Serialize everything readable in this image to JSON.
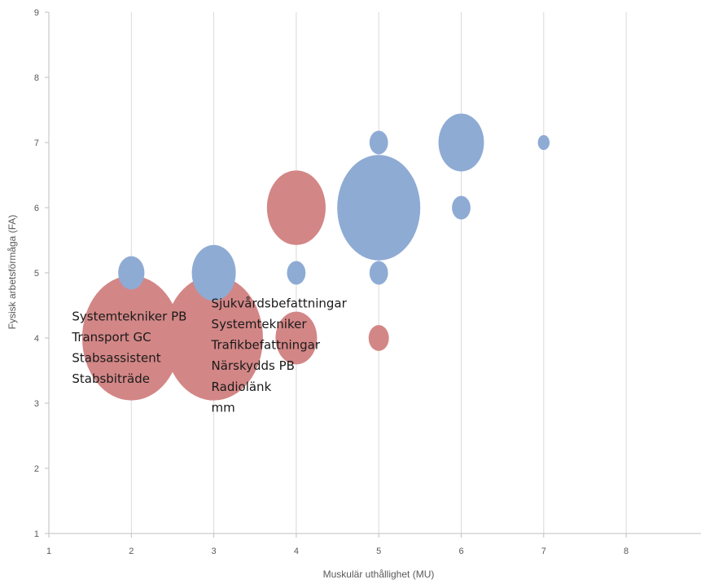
{
  "chart_data": {
    "type": "bubble",
    "xlabel": "Muskulär uthållighet (MU)",
    "ylabel": "Fysisk arbetsförmåga (FA)",
    "xlim": [
      1,
      9
    ],
    "ylim": [
      1,
      9
    ],
    "xticks": [
      1,
      2,
      3,
      4,
      5,
      6,
      7,
      8
    ],
    "yticks": [
      1,
      2,
      3,
      4,
      5,
      6,
      7,
      8,
      9
    ],
    "grid": "vertical",
    "colors": {
      "blue": "#8eabd4",
      "red": "#d38686"
    },
    "series": [
      {
        "color": "#8eabd4",
        "points": [
          {
            "x": 2,
            "y": 5,
            "size": 1.0
          },
          {
            "x": 3,
            "y": 5,
            "size": 2.8
          },
          {
            "x": 4,
            "y": 5,
            "size": 0.5
          },
          {
            "x": 5,
            "y": 5,
            "size": 0.5
          },
          {
            "x": 5,
            "y": 6,
            "size": 10.0
          },
          {
            "x": 5,
            "y": 7,
            "size": 0.5
          },
          {
            "x": 6,
            "y": 6,
            "size": 0.5
          },
          {
            "x": 6,
            "y": 7,
            "size": 3.0
          },
          {
            "x": 7,
            "y": 7,
            "size": 0.2
          }
        ]
      },
      {
        "color": "#d38686",
        "points": [
          {
            "x": 2,
            "y": 4,
            "size": 14.0
          },
          {
            "x": 3,
            "y": 4,
            "size": 14.0
          },
          {
            "x": 4,
            "y": 6,
            "size": 5.0
          },
          {
            "x": 4,
            "y": 4,
            "size": 2.5
          },
          {
            "x": 5,
            "y": 4,
            "size": 0.6
          }
        ]
      }
    ],
    "annotations": [
      {
        "x": 1.28,
        "y": 4.27,
        "lines": [
          "Systemtekniker PB",
          "Transport GC",
          "Stabsassistent",
          "Stabsbiträde"
        ]
      },
      {
        "x": 2.97,
        "y": 4.47,
        "lines": [
          "Sjukvårdsbefattningar",
          "Systemtekniker",
          "Trafikbefattningar",
          "Närskydds PB",
          "Radiolänk",
          "mm"
        ]
      }
    ]
  }
}
